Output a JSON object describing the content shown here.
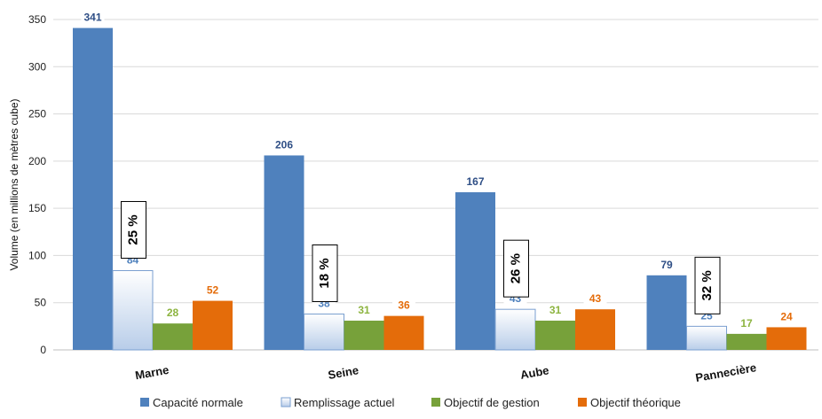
{
  "chart_data": {
    "type": "bar",
    "ylabel": "Volume (en millions de mètres cube)",
    "xlabel": "",
    "ylim": [
      0,
      350
    ],
    "yticks": [
      0,
      50,
      100,
      150,
      200,
      250,
      300,
      350
    ],
    "categories": [
      "Marne",
      "Seine",
      "Aube",
      "Pannecière"
    ],
    "series": [
      {
        "name": "Capacité normale",
        "values": [
          341,
          206,
          167,
          79
        ],
        "color": "#4f81bd",
        "label_color": "#2f4f86"
      },
      {
        "name": "Remplissage actuel",
        "values": [
          84,
          38,
          43,
          25
        ],
        "color": "#c6d9f1",
        "label_color": "#4f81bd"
      },
      {
        "name": "Objectif de gestion",
        "values": [
          28,
          31,
          31,
          17
        ],
        "color": "#77a13a",
        "label_color": "#8db440"
      },
      {
        "name": "Objectif théorique",
        "values": [
          52,
          36,
          43,
          24
        ],
        "color": "#e46c0a",
        "label_color": "#e46c0a"
      }
    ],
    "annotations": [
      "25 %",
      "18 %",
      "26 %",
      "32 %"
    ],
    "grid": true,
    "legend_position": "bottom"
  }
}
